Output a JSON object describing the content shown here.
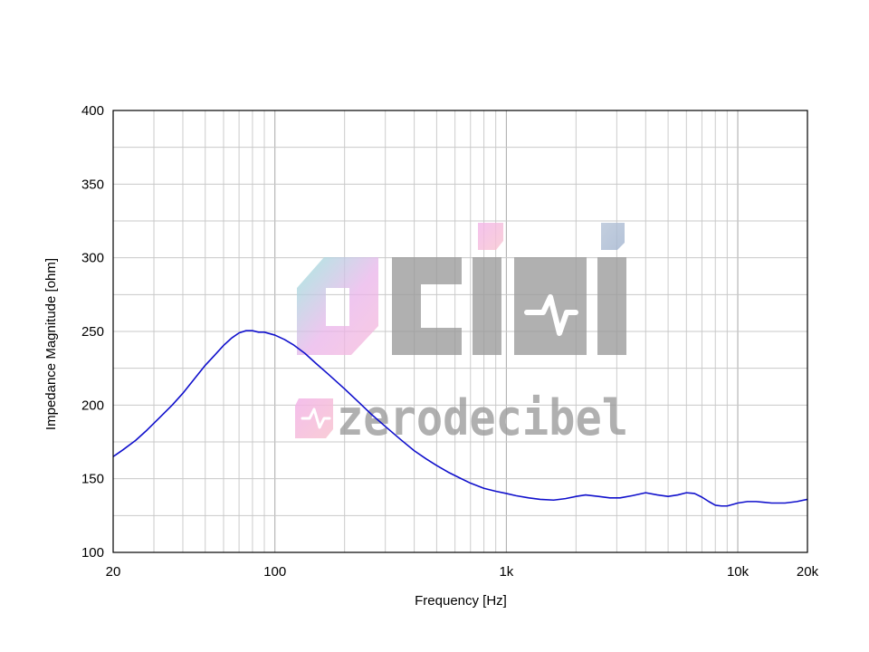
{
  "chart_data": {
    "type": "line",
    "xlabel": "Frequency [Hz]",
    "ylabel": "Impedance Magnitude [ohm]",
    "x_scale": "log",
    "xlim": [
      20,
      20000
    ],
    "ylim": [
      100,
      400
    ],
    "x_ticks": [
      {
        "value": 20,
        "label": "20"
      },
      {
        "value": 100,
        "label": "100"
      },
      {
        "value": 1000,
        "label": "1k"
      },
      {
        "value": 10000,
        "label": "10k"
      },
      {
        "value": 20000,
        "label": "20k"
      }
    ],
    "y_ticks": [
      {
        "value": 100,
        "label": "100"
      },
      {
        "value": 150,
        "label": "150"
      },
      {
        "value": 200,
        "label": "200"
      },
      {
        "value": 250,
        "label": "250"
      },
      {
        "value": 300,
        "label": "300"
      },
      {
        "value": 350,
        "label": "350"
      },
      {
        "value": 400,
        "label": "400"
      }
    ],
    "grid": true,
    "line_color": "#1010cc",
    "series": [
      {
        "x": [
          20,
          22,
          25,
          28,
          32,
          36,
          40,
          45,
          50,
          55,
          60,
          65,
          70,
          75,
          80,
          85,
          90,
          100,
          110,
          120,
          135,
          150,
          170,
          200,
          230,
          260,
          300,
          350,
          400,
          450,
          500,
          560,
          630,
          700,
          800,
          900,
          1000,
          1100,
          1250,
          1400,
          1600,
          1800,
          2000,
          2200,
          2500,
          2800,
          3100,
          3500,
          4000,
          4500,
          5000,
          5500,
          6000,
          6500,
          7000,
          7500,
          8000,
          8500,
          9000,
          9500,
          10000,
          11000,
          12000,
          13000,
          14000,
          15000,
          16000,
          18000,
          20000
        ],
        "y": [
          165,
          169.5,
          176,
          183,
          192,
          200,
          208,
          218,
          227,
          234,
          240.5,
          245.5,
          249,
          250.5,
          250.5,
          249.5,
          249.5,
          247.5,
          244.5,
          241,
          235,
          228.5,
          221,
          211,
          202,
          194,
          185.5,
          176.5,
          169,
          163.5,
          159,
          154.5,
          150.5,
          147,
          143.5,
          141.5,
          140,
          138.5,
          137,
          136,
          135.5,
          136.5,
          138,
          139,
          138,
          137,
          137,
          138.5,
          140.5,
          139,
          138,
          139,
          140.5,
          140,
          137.5,
          134.5,
          132,
          131.5,
          131.5,
          132.5,
          133.5,
          134.5,
          134.5,
          134,
          133.5,
          133.5,
          133.5,
          134.5,
          136
        ]
      }
    ]
  },
  "watermark": {
    "logo_letters": "CIMI",
    "brand": "zerodecibel",
    "colors": [
      "#8fe3d8",
      "#f3b6e6",
      "#a9bad2",
      "#9a9a9a"
    ]
  }
}
